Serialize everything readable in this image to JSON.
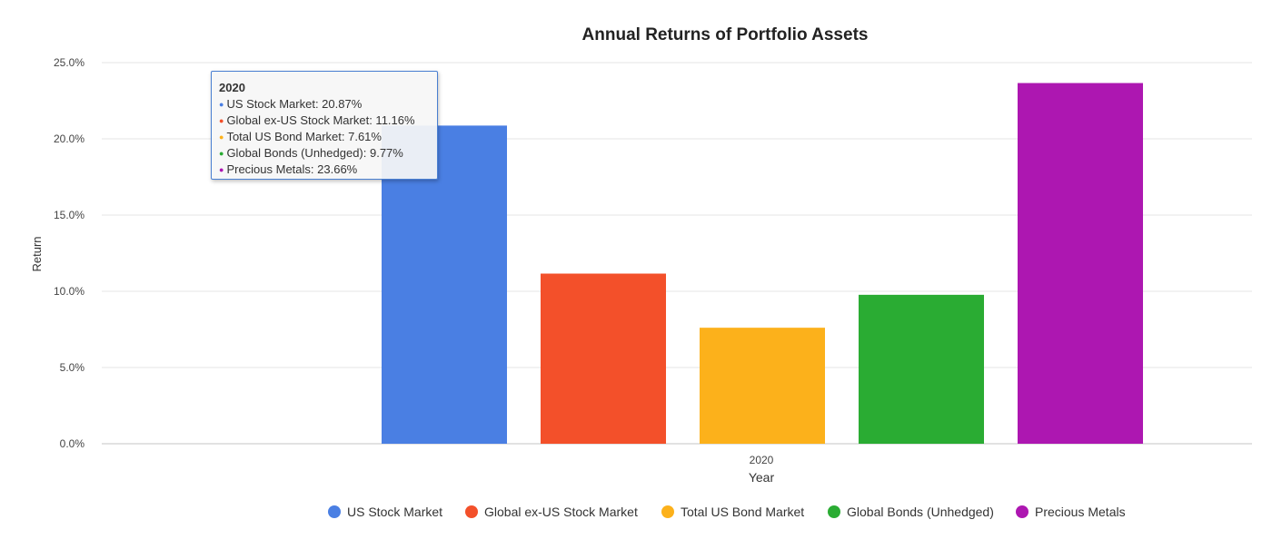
{
  "chart_data": {
    "type": "bar",
    "title": "Annual Returns of Portfolio Assets",
    "xlabel": "Year",
    "ylabel": "Return",
    "categories": [
      "2020"
    ],
    "ylim": [
      0,
      25
    ],
    "yticks": [
      "0.0%",
      "5.0%",
      "10.0%",
      "15.0%",
      "20.0%",
      "25.0%"
    ],
    "grid": true,
    "legend_position": "bottom",
    "series": [
      {
        "name": "US Stock Market",
        "values": [
          20.87
        ],
        "color": "#4a7fe3"
      },
      {
        "name": "Global ex-US Stock Market",
        "values": [
          11.16
        ],
        "color": "#f3502a"
      },
      {
        "name": "Total US Bond Market",
        "values": [
          7.61
        ],
        "color": "#fcb11b"
      },
      {
        "name": "Global Bonds (Unhedged)",
        "values": [
          9.77
        ],
        "color": "#2aac33"
      },
      {
        "name": "Precious Metals",
        "values": [
          23.66
        ],
        "color": "#ad17b1"
      }
    ]
  },
  "tooltip": {
    "title": "2020",
    "rows": [
      {
        "text": "US Stock Market: 20.87%",
        "color": "#4a7fe3"
      },
      {
        "text": "Global ex-US Stock Market: 11.16%",
        "color": "#f3502a"
      },
      {
        "text": "Total US Bond Market: 7.61%",
        "color": "#fcb11b"
      },
      {
        "text": "Global Bonds (Unhedged): 9.77%",
        "color": "#2aac33"
      },
      {
        "text": "Precious Metals: 23.66%",
        "color": "#ad17b1"
      }
    ]
  }
}
